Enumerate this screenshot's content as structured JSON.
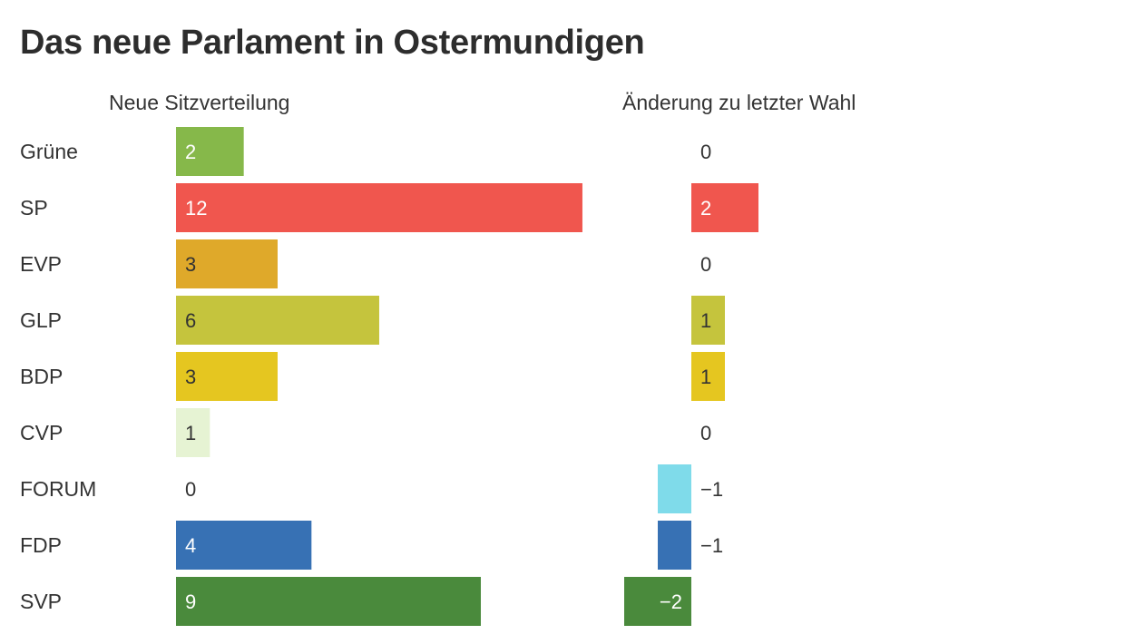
{
  "chart_data": {
    "type": "bar",
    "title": "Das neue Parlament in Ostermundigen",
    "categories": [
      "Grüne",
      "SP",
      "EVP",
      "GLP",
      "BDP",
      "CVP",
      "FORUM",
      "FDP",
      "SVP"
    ],
    "series": [
      {
        "name": "Neue Sitzverteilung",
        "values": [
          2,
          12,
          3,
          6,
          3,
          1,
          0,
          4,
          9
        ],
        "labels": [
          "2",
          "12",
          "3",
          "6",
          "3",
          "1",
          "0",
          "4",
          "9"
        ]
      },
      {
        "name": "Änderung zu letzter Wahl",
        "values": [
          0,
          2,
          0,
          1,
          1,
          0,
          -1,
          -1,
          -2
        ],
        "labels": [
          "0",
          "2",
          "0",
          "1",
          "1",
          "0",
          "−1",
          "−1",
          "−2"
        ]
      }
    ],
    "colors": [
      "#86b84a",
      "#f0564e",
      "#dfa92a",
      "#c5c43d",
      "#e5c620",
      "#e6f3d3",
      "#7fdbea",
      "#3771b4",
      "#4a8a3c"
    ],
    "label_colors": [
      "#ffffff",
      "#ffffff",
      "#333333",
      "#333333",
      "#333333",
      "#333333",
      "#333333",
      "#ffffff",
      "#ffffff"
    ]
  }
}
